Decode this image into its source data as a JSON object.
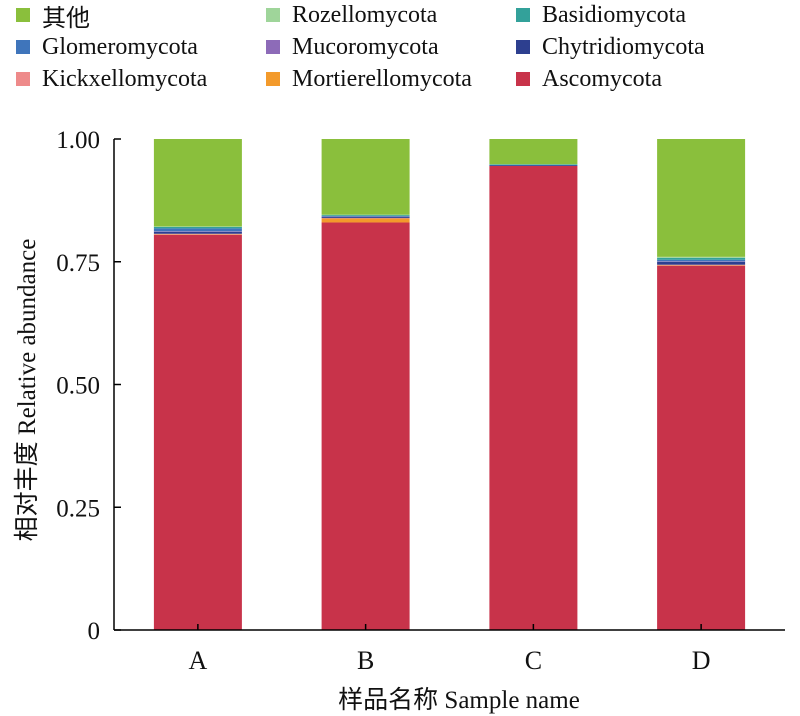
{
  "chart_data": {
    "type": "bar",
    "stacked": true,
    "categories": [
      "A",
      "B",
      "C",
      "D"
    ],
    "series": [
      {
        "name": "Ascomycota",
        "color": "#c8334a",
        "values": [
          0.805,
          0.83,
          0.945,
          0.742
        ]
      },
      {
        "name": "Mortierellomycota",
        "color": "#f39a2b",
        "values": [
          0.001,
          0.008,
          0.0,
          0.001
        ]
      },
      {
        "name": "Kickxellomycota",
        "color": "#ee8a8a",
        "values": [
          0.001,
          0.001,
          0.0,
          0.001
        ]
      },
      {
        "name": "Chytridiomycota",
        "color": "#2d3f8f",
        "values": [
          0.004,
          0.002,
          0.001,
          0.006
        ]
      },
      {
        "name": "Mucoromycota",
        "color": "#8d6bb8",
        "values": [
          0.001,
          0.001,
          0.0,
          0.001
        ]
      },
      {
        "name": "Glomeromycota",
        "color": "#3f75bb",
        "values": [
          0.006,
          0.001,
          0.001,
          0.003
        ]
      },
      {
        "name": "Basidiomycota",
        "color": "#33a19a",
        "values": [
          0.003,
          0.002,
          0.001,
          0.004
        ]
      },
      {
        "name": "Rozellomycota",
        "color": "#9fd59a",
        "values": [
          0.001,
          0.001,
          0.001,
          0.002
        ]
      },
      {
        "name": "其他",
        "color": "#8abf3c",
        "values": [
          0.178,
          0.154,
          0.051,
          0.24
        ]
      }
    ],
    "legend_order": [
      "其他",
      "Rozellomycota",
      "Basidiomycota",
      "Glomeromycota",
      "Mucoromycota",
      "Chytridiomycota",
      "Kickxellomycota",
      "Mortierellomycota",
      "Ascomycota"
    ],
    "yticks": [
      "0",
      "0.25",
      "0.50",
      "0.75",
      "1.00"
    ],
    "ylim": [
      0,
      1
    ],
    "xlabel": "样品名称 Sample name",
    "ylabel": "相对丰度 Relative abundance",
    "legend_position": "top",
    "grid": false
  }
}
